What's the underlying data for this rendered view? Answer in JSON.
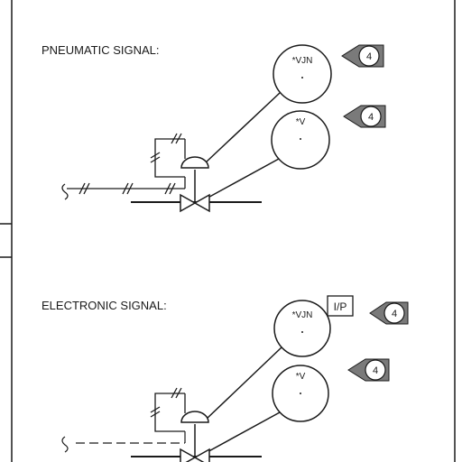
{
  "sections": [
    {
      "heading": "PNEUMATIC SIGNAL:",
      "signal_type": "pneumatic",
      "instruments": [
        {
          "tag": "*VJN",
          "callout": "4"
        },
        {
          "tag": "*V",
          "callout": "4"
        }
      ]
    },
    {
      "heading": "ELECTRONIC SIGNAL:",
      "signal_type": "electronic",
      "converter_label": "I/P",
      "instruments": [
        {
          "tag": "*VJN",
          "callout": "4"
        },
        {
          "tag": "*V",
          "callout": "4"
        }
      ]
    }
  ],
  "colors": {
    "line": "#1a1a1a",
    "paper": "#ffffff",
    "callout_fill": "#7a7a7a"
  }
}
